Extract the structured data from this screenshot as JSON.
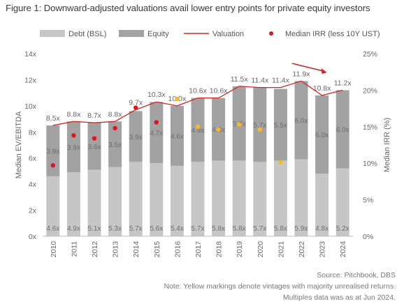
{
  "title": "Figure 1: Downward-adjusted valuations avail lower entry points for private equity investors",
  "notes": {
    "source": "Source: Pitchbook, DBS",
    "note1": "Note: Yellow markings denote vintages with majority unrealised returns.",
    "note2": "Multiples data was as at Jun 2024."
  },
  "colors": {
    "debt": "#c6c6c6",
    "equity": "#a2a2a2",
    "valuation": "#d32525",
    "irr_realised": "#e0141e",
    "irr_unrealised": "#f7b922",
    "label": "#666666",
    "axis": "#666666",
    "arrow": "#cc1f2a"
  },
  "chart_data": {
    "type": "bar",
    "stacked": true,
    "categories": [
      "2010",
      "2011",
      "2012",
      "2013",
      "2014",
      "2015",
      "2016",
      "2017",
      "2018",
      "2019",
      "2020",
      "2021",
      "2022",
      "2023",
      "2024"
    ],
    "series": [
      {
        "name": "Debt (BSL)",
        "values": [
          4.6,
          4.9,
          5.1,
          5.3,
          5.7,
          5.6,
          5.4,
          5.7,
          5.8,
          5.8,
          5.7,
          5.8,
          5.9,
          4.8,
          5.2
        ],
        "labels": [
          "4.6x",
          "4.9x",
          "5.1x",
          "5.3x",
          "5.7x",
          "5.6x",
          "5.4x",
          "5.7x",
          "5.8x",
          "5.8x",
          "5.7x",
          "5.8x",
          "5.9x",
          "4.8x",
          "5.2x"
        ]
      },
      {
        "name": "Equity",
        "values": [
          3.9,
          3.9,
          3.6,
          3.5,
          3.9,
          4.7,
          4.6,
          4.9,
          4.8,
          5.7,
          5.7,
          5.5,
          6.0,
          6.0,
          6.0
        ],
        "labels": [
          "3.9x",
          "3.9x",
          "3.6x",
          "3.5x",
          "3.9x",
          "4.7x",
          "4.6x",
          "4.9x",
          "4.8x",
          "5.7x",
          "5.7x",
          "5.5x",
          "6.0x",
          "6.0x",
          "6.0x"
        ]
      }
    ],
    "line": {
      "name": "Valuation",
      "values": [
        8.5,
        8.8,
        8.7,
        8.8,
        9.7,
        10.3,
        10.0,
        10.6,
        10.6,
        11.5,
        11.4,
        11.4,
        11.9,
        10.8,
        11.2
      ],
      "labels": [
        "8.5x",
        "8.8x",
        "8.7x",
        "8.8x",
        "9.7x",
        "10.3x",
        "10.0x",
        "10.6x",
        "10.6x",
        "11.5x",
        "11.4x",
        "11.4x",
        "11.9x",
        "10.8x",
        "11.2x"
      ]
    },
    "irr": {
      "name": "Median IRR (less 10Y UST)",
      "values": [
        9.7,
        13.8,
        13.4,
        14.8,
        17.6,
        15.6,
        18.8,
        15.0,
        14.6,
        15.3,
        14.6,
        10.1,
        null,
        null,
        null
      ],
      "unrealised": [
        false,
        false,
        false,
        false,
        false,
        false,
        true,
        true,
        true,
        true,
        true,
        true,
        false,
        false,
        false
      ]
    },
    "ylabel": "Median EV/EBITDA",
    "y2label": "Median IRR (%)",
    "ylim": [
      0,
      14
    ],
    "yticks": [
      "0x",
      "2x",
      "4x",
      "6x",
      "8x",
      "10x",
      "12x",
      "14x"
    ],
    "y2lim": [
      0,
      25
    ],
    "y2ticks": [
      "0%",
      "5%",
      "10%",
      "15%",
      "20%",
      "25%"
    ],
    "legend_position": "top",
    "grid": false
  }
}
